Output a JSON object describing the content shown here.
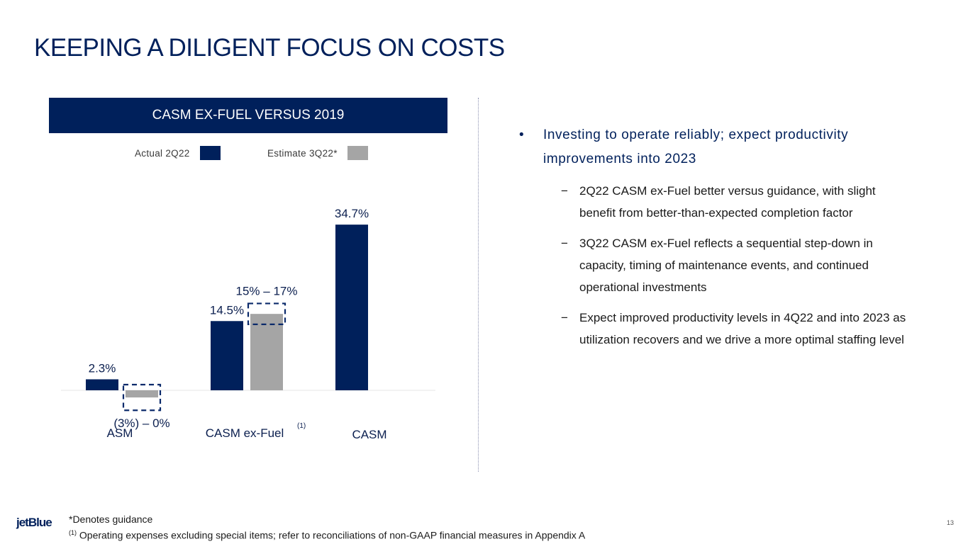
{
  "title": "KEEPING A DILIGENT FOCUS ON COSTS",
  "chart_data": {
    "type": "bar",
    "title": "CASM EX-FUEL VERSUS 2019",
    "categories": [
      "ASM",
      "CASM ex-Fuel",
      "CASM"
    ],
    "category_footnote": [
      "",
      "(1)",
      ""
    ],
    "series": [
      {
        "name": "Actual 2Q22",
        "color": "#00205b",
        "values": [
          2.3,
          14.5,
          34.7
        ],
        "labels": [
          "2.3%",
          "14.5%",
          "34.7%"
        ]
      },
      {
        "name": "Estimate 3Q22*",
        "color": "#a5a5a5",
        "values": [
          -1.5,
          16,
          null
        ],
        "ranges": [
          [
            -3,
            0
          ],
          [
            15,
            17
          ],
          null
        ],
        "labels": [
          "(3%) – 0%",
          "15% – 17%",
          ""
        ]
      }
    ],
    "unit": "%",
    "grid": false,
    "legend": "top"
  },
  "bullets": {
    "main": "Investing to operate reliably; expect productivity improvements into 2023",
    "subs": [
      "2Q22 CASM ex-Fuel better versus guidance, with slight benefit from better-than-expected completion factor",
      "3Q22 CASM ex-Fuel reflects a sequential step-down in capacity, timing of maintenance events, and continued operational investments",
      "Expect improved productivity levels in 4Q22 and into 2023 as utilization recovers and we drive a more optimal staffing level"
    ],
    "bullet_glyph": "•",
    "dash_glyph": "−"
  },
  "footnotes": {
    "guidance": "*Denotes guidance",
    "marker": "(1)",
    "note1": "Operating expenses excluding special items; refer to reconciliations of non-GAAP financial measures in Appendix A"
  },
  "logo": "jetBlue",
  "page_number": "13"
}
